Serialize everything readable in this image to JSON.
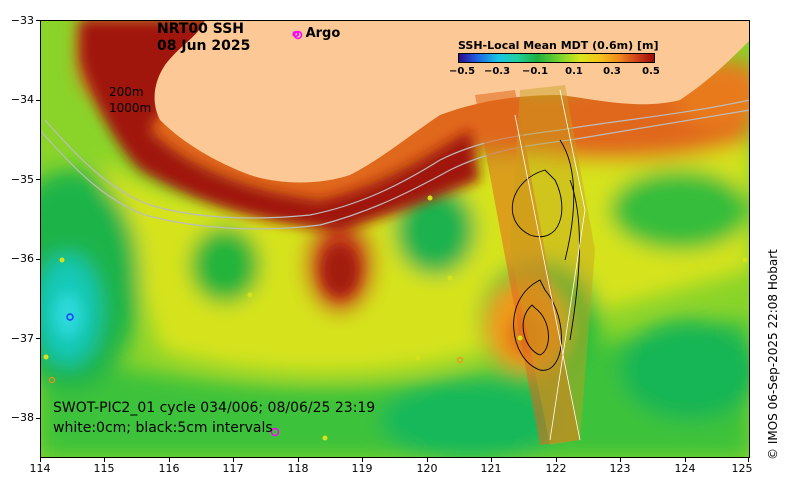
{
  "title": {
    "line1": "NRT00 SSH",
    "line2": "08 Jun 2025"
  },
  "argo_legend": {
    "marker": "o",
    "label": "Argo",
    "color": "#ff00ff"
  },
  "depth_labels": {
    "shallow": "200m",
    "deep": "1000m"
  },
  "colorbar": {
    "title": "SSH-Local Mean MDT (0.6m) [m]",
    "ticks": [
      "−0.5",
      "−0.3",
      "−0.1",
      "0.1",
      "0.3",
      "0.5"
    ],
    "range": [
      -0.6,
      0.6
    ]
  },
  "axes": {
    "lat_ticks": [
      "−33",
      "−34",
      "−35",
      "−36",
      "−37",
      "−38"
    ],
    "lon_ticks": [
      "114",
      "115",
      "116",
      "117",
      "118",
      "119",
      "120",
      "121",
      "122",
      "123",
      "124",
      "125"
    ],
    "lon_range": [
      114,
      125
    ],
    "lat_range": [
      -38.5,
      -33
    ]
  },
  "swot_annotation": {
    "line1": "SWOT-PIC2_01 cycle 034/006; 08/06/25 23:19",
    "line2": "white:0cm; black:5cm intervals"
  },
  "copyright": "©  IMOS 06-Sep-2025 22:08 Hobart",
  "colors": {
    "land": "#fcc896",
    "ocean_high": "#9a0c0a",
    "ocean_low": "#1db040"
  }
}
